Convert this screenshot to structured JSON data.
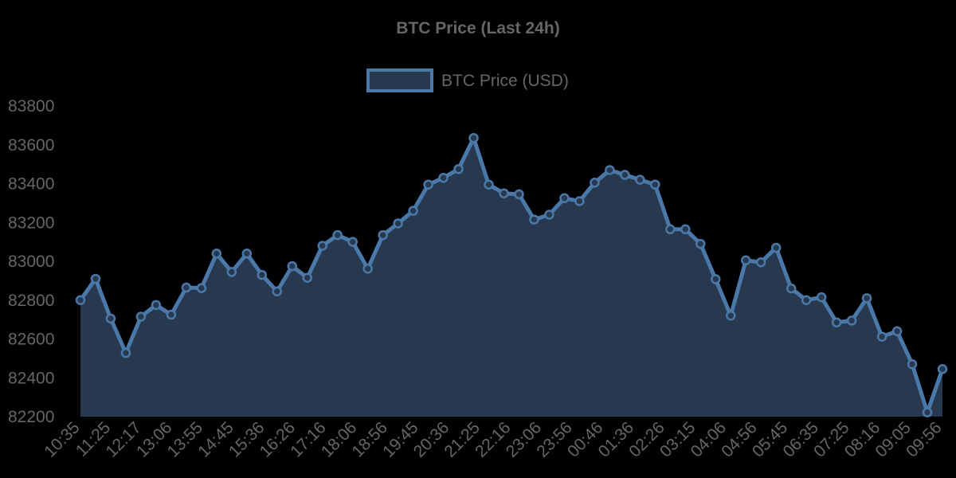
{
  "chart_data": {
    "type": "area",
    "title": "BTC Price (Last 24h)",
    "legend": {
      "position": "top",
      "label": "BTC Price (USD)"
    },
    "colors": {
      "line": "#4a78a8",
      "fill": "#28394f",
      "background": "#000000",
      "text": "#666666"
    },
    "grid": false,
    "ylim": [
      82200,
      83800
    ],
    "yticks": [
      82200,
      82400,
      82600,
      82800,
      83000,
      83200,
      83400,
      83600,
      83800
    ],
    "xtick_labels": [
      "10:35",
      "11:25",
      "12:17",
      "13:06",
      "13:55",
      "14:45",
      "15:36",
      "16:26",
      "17:16",
      "18:06",
      "18:56",
      "19:45",
      "20:36",
      "21:25",
      "22:16",
      "23:06",
      "23:56",
      "00:46",
      "01:36",
      "02:26",
      "03:15",
      "04:06",
      "04:56",
      "05:45",
      "06:35",
      "07:25",
      "08:16",
      "09:05",
      "09:56"
    ],
    "series": [
      {
        "name": "BTC Price (USD)",
        "values": [
          82800,
          82910,
          82705,
          82528,
          82715,
          82775,
          82725,
          82865,
          82862,
          83040,
          82945,
          83040,
          82930,
          82845,
          82975,
          82915,
          83080,
          83135,
          83100,
          82962,
          83135,
          83195,
          83260,
          83395,
          83430,
          83475,
          83635,
          83395,
          83350,
          83345,
          83215,
          83240,
          83325,
          83310,
          83405,
          83470,
          83445,
          83420,
          83395,
          83165,
          83165,
          83090,
          82908,
          82720,
          83005,
          82995,
          83070,
          82860,
          82800,
          82815,
          82685,
          82695,
          82810,
          82612,
          82640,
          82470,
          82222,
          82445
        ]
      }
    ]
  }
}
